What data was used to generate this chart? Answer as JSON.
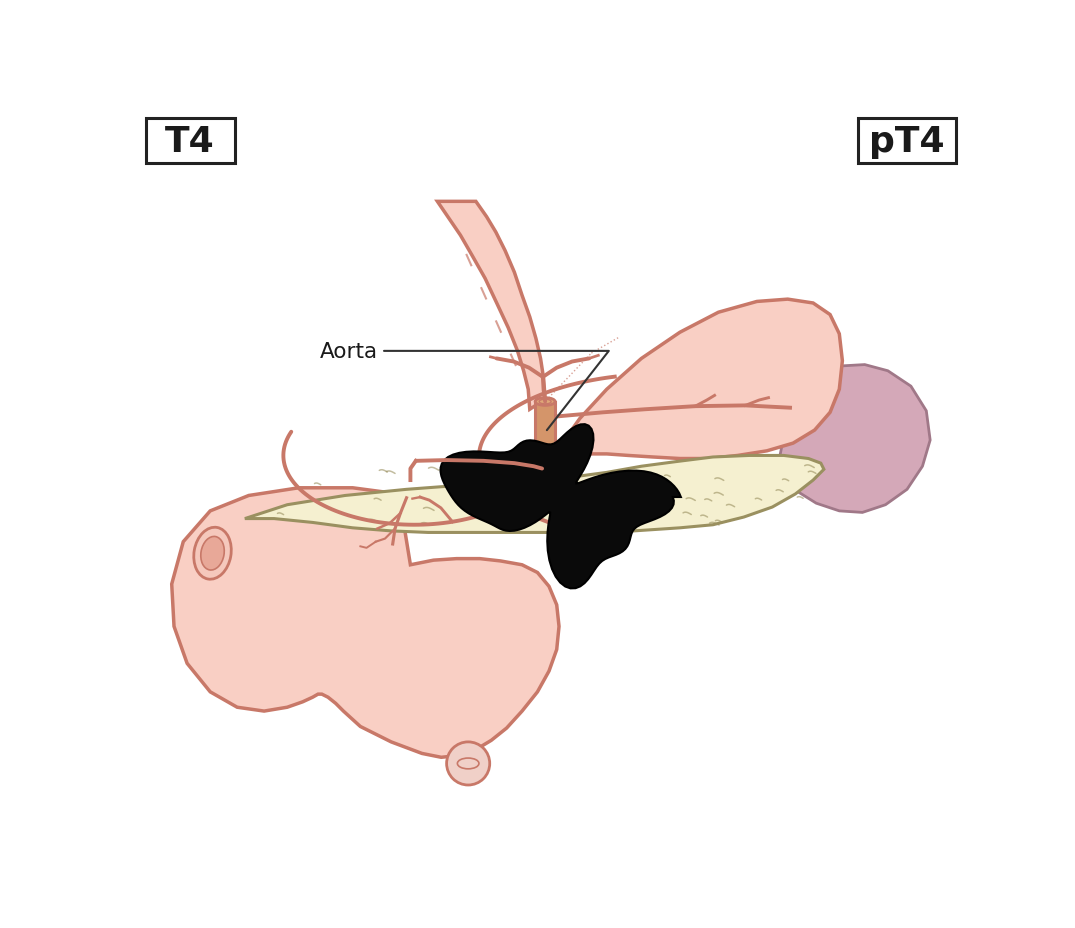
{
  "title_left": "T4",
  "title_right": "pT4",
  "label_aorta": "Aorta",
  "bg_color": "#ffffff",
  "stomach_fill": "#f9cfc4",
  "stomach_stroke": "#c87868",
  "stomach_fold_color": "#c87868",
  "esophagus_fill": "#f9cfc4",
  "esophagus_stroke": "#c87868",
  "pancreas_fill": "#f5f0d0",
  "pancreas_stroke": "#9a9060",
  "duodenum_fill": "#f9cfc4",
  "duodenum_stroke": "#c87868",
  "spleen_fill": "#d4a8b8",
  "spleen_stroke": "#a07888",
  "tumor_fill": "#0a0a0a",
  "tumor_stroke": "#000000",
  "vessel_stroke": "#c87868",
  "vessel_fill": "#f0a898",
  "aorta_fill": "#d4956a",
  "aorta_stroke": "#c87868",
  "text_color": "#1a1a1a",
  "box_stroke": "#222222",
  "annotation_color": "#333333"
}
